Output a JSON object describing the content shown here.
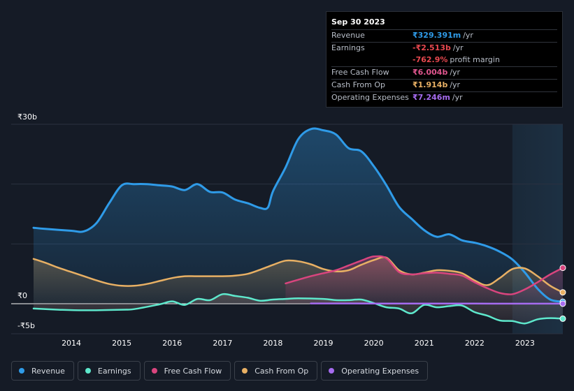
{
  "tooltip": {
    "date": "Sep 30 2023",
    "revenue_label": "Revenue",
    "revenue_value": "₹329.391m",
    "revenue_suffix": "/yr",
    "earnings_label": "Earnings",
    "earnings_value": "-₹2.513b",
    "earnings_suffix": "/yr",
    "margin_value": "-762.9%",
    "margin_suffix": "profit margin",
    "fcf_label": "Free Cash Flow",
    "fcf_value": "₹6.004b",
    "fcf_suffix": "/yr",
    "cfo_label": "Cash From Op",
    "cfo_value": "₹1.914b",
    "cfo_suffix": "/yr",
    "opex_label": "Operating Expenses",
    "opex_value": "₹7.246m",
    "opex_suffix": "/yr"
  },
  "legend": {
    "revenue": "Revenue",
    "earnings": "Earnings",
    "fcf": "Free Cash Flow",
    "cfo": "Cash From Op",
    "opex": "Operating Expenses"
  },
  "colors": {
    "revenue": "#2f9be8",
    "earnings": "#5ee8cc",
    "fcf": "#d9457e",
    "cfo": "#e8b064",
    "opex": "#a66cf0",
    "grid": "#2b3140",
    "zero": "#ffffff"
  },
  "chart_data": {
    "type": "area",
    "title": "",
    "xlabel": "",
    "ylabel": "",
    "ylim": [
      -5,
      30
    ],
    "xlim": [
      2013.25,
      2023.75
    ],
    "y_tick_labels": [
      "₹30b",
      "₹0",
      "-₹5b"
    ],
    "x_ticks": [
      "2014",
      "2015",
      "2016",
      "2017",
      "2018",
      "2019",
      "2020",
      "2021",
      "2022",
      "2023"
    ],
    "highlight_start": 2022.75,
    "series": [
      {
        "name": "Revenue",
        "key": "revenue",
        "points": [
          [
            2013.25,
            12.7
          ],
          [
            2013.5,
            12.5
          ],
          [
            2014.0,
            12.2
          ],
          [
            2014.25,
            12.1
          ],
          [
            2014.5,
            13.5
          ],
          [
            2014.75,
            16.8
          ],
          [
            2015.0,
            19.8
          ],
          [
            2015.25,
            20.0
          ],
          [
            2015.5,
            20.0
          ],
          [
            2015.75,
            19.8
          ],
          [
            2016.0,
            19.6
          ],
          [
            2016.25,
            19.0
          ],
          [
            2016.5,
            20.0
          ],
          [
            2016.75,
            18.7
          ],
          [
            2017.0,
            18.6
          ],
          [
            2017.25,
            17.4
          ],
          [
            2017.5,
            16.8
          ],
          [
            2017.75,
            16.0
          ],
          [
            2017.9,
            16.1
          ],
          [
            2018.0,
            18.8
          ],
          [
            2018.25,
            22.8
          ],
          [
            2018.5,
            27.5
          ],
          [
            2018.75,
            29.2
          ],
          [
            2019.0,
            29.0
          ],
          [
            2019.25,
            28.3
          ],
          [
            2019.5,
            26.0
          ],
          [
            2019.75,
            25.5
          ],
          [
            2020.0,
            23.0
          ],
          [
            2020.25,
            19.8
          ],
          [
            2020.5,
            16.2
          ],
          [
            2020.75,
            14.2
          ],
          [
            2021.0,
            12.3
          ],
          [
            2021.25,
            11.2
          ],
          [
            2021.5,
            11.6
          ],
          [
            2021.75,
            10.6
          ],
          [
            2022.0,
            10.2
          ],
          [
            2022.25,
            9.6
          ],
          [
            2022.5,
            8.7
          ],
          [
            2022.75,
            7.4
          ],
          [
            2023.0,
            5.2
          ],
          [
            2023.25,
            2.5
          ],
          [
            2023.5,
            0.7
          ],
          [
            2023.75,
            0.33
          ]
        ]
      },
      {
        "name": "Earnings",
        "key": "earnings",
        "points": [
          [
            2013.25,
            -0.8
          ],
          [
            2013.75,
            -1.0
          ],
          [
            2014.25,
            -1.1
          ],
          [
            2015.0,
            -1.0
          ],
          [
            2015.25,
            -0.9
          ],
          [
            2015.75,
            -0.1
          ],
          [
            2016.0,
            0.4
          ],
          [
            2016.25,
            -0.2
          ],
          [
            2016.5,
            0.8
          ],
          [
            2016.75,
            0.6
          ],
          [
            2017.0,
            1.6
          ],
          [
            2017.25,
            1.3
          ],
          [
            2017.5,
            1.0
          ],
          [
            2017.75,
            0.5
          ],
          [
            2018.0,
            0.7
          ],
          [
            2018.25,
            0.8
          ],
          [
            2018.5,
            0.9
          ],
          [
            2019.0,
            0.8
          ],
          [
            2019.25,
            0.6
          ],
          [
            2019.5,
            0.6
          ],
          [
            2019.75,
            0.7
          ],
          [
            2020.0,
            0.1
          ],
          [
            2020.25,
            -0.6
          ],
          [
            2020.5,
            -0.8
          ],
          [
            2020.75,
            -1.6
          ],
          [
            2021.0,
            -0.2
          ],
          [
            2021.25,
            -0.6
          ],
          [
            2021.5,
            -0.4
          ],
          [
            2021.75,
            -0.3
          ],
          [
            2022.0,
            -1.4
          ],
          [
            2022.25,
            -2.0
          ],
          [
            2022.5,
            -2.8
          ],
          [
            2022.75,
            -2.9
          ],
          [
            2023.0,
            -3.3
          ],
          [
            2023.25,
            -2.6
          ],
          [
            2023.5,
            -2.4
          ],
          [
            2023.75,
            -2.5
          ]
        ]
      },
      {
        "name": "Free Cash Flow",
        "key": "fcf",
        "points": [
          [
            2018.25,
            3.4
          ],
          [
            2018.5,
            4.0
          ],
          [
            2018.75,
            4.6
          ],
          [
            2019.0,
            5.1
          ],
          [
            2019.25,
            5.6
          ],
          [
            2019.5,
            6.4
          ],
          [
            2019.75,
            7.2
          ],
          [
            2020.0,
            7.9
          ],
          [
            2020.25,
            7.6
          ],
          [
            2020.5,
            5.3
          ],
          [
            2020.75,
            4.9
          ],
          [
            2021.0,
            5.1
          ],
          [
            2021.25,
            5.2
          ],
          [
            2021.5,
            5.0
          ],
          [
            2021.75,
            4.7
          ],
          [
            2022.0,
            3.6
          ],
          [
            2022.25,
            2.6
          ],
          [
            2022.5,
            1.8
          ],
          [
            2022.75,
            1.6
          ],
          [
            2023.0,
            2.4
          ],
          [
            2023.25,
            3.6
          ],
          [
            2023.5,
            4.9
          ],
          [
            2023.75,
            6.0
          ]
        ]
      },
      {
        "name": "Cash From Op",
        "key": "cfo",
        "points": [
          [
            2013.25,
            7.5
          ],
          [
            2013.5,
            6.8
          ],
          [
            2013.75,
            6.0
          ],
          [
            2014.0,
            5.3
          ],
          [
            2014.25,
            4.6
          ],
          [
            2014.5,
            3.9
          ],
          [
            2014.75,
            3.3
          ],
          [
            2015.0,
            3.0
          ],
          [
            2015.25,
            3.0
          ],
          [
            2015.5,
            3.3
          ],
          [
            2015.75,
            3.8
          ],
          [
            2016.0,
            4.3
          ],
          [
            2016.25,
            4.6
          ],
          [
            2016.5,
            4.6
          ],
          [
            2017.0,
            4.6
          ],
          [
            2017.25,
            4.7
          ],
          [
            2017.5,
            5.0
          ],
          [
            2017.75,
            5.7
          ],
          [
            2018.0,
            6.5
          ],
          [
            2018.25,
            7.2
          ],
          [
            2018.5,
            7.1
          ],
          [
            2018.75,
            6.6
          ],
          [
            2019.0,
            5.8
          ],
          [
            2019.25,
            5.4
          ],
          [
            2019.5,
            5.6
          ],
          [
            2019.75,
            6.5
          ],
          [
            2020.0,
            7.3
          ],
          [
            2020.25,
            7.7
          ],
          [
            2020.5,
            5.6
          ],
          [
            2020.75,
            4.9
          ],
          [
            2021.0,
            5.2
          ],
          [
            2021.25,
            5.6
          ],
          [
            2021.5,
            5.5
          ],
          [
            2021.75,
            5.1
          ],
          [
            2022.0,
            3.9
          ],
          [
            2022.25,
            3.1
          ],
          [
            2022.5,
            4.3
          ],
          [
            2022.75,
            5.8
          ],
          [
            2023.0,
            5.9
          ],
          [
            2023.25,
            4.6
          ],
          [
            2023.5,
            3.0
          ],
          [
            2023.75,
            1.9
          ]
        ]
      },
      {
        "name": "Operating Expenses",
        "key": "opex",
        "points": [
          [
            2018.75,
            0.05
          ],
          [
            2019.0,
            0.05
          ],
          [
            2020.0,
            0.04
          ],
          [
            2021.0,
            0.03
          ],
          [
            2022.0,
            0.02
          ],
          [
            2023.0,
            0.01
          ],
          [
            2023.75,
            0.007
          ]
        ]
      }
    ]
  }
}
